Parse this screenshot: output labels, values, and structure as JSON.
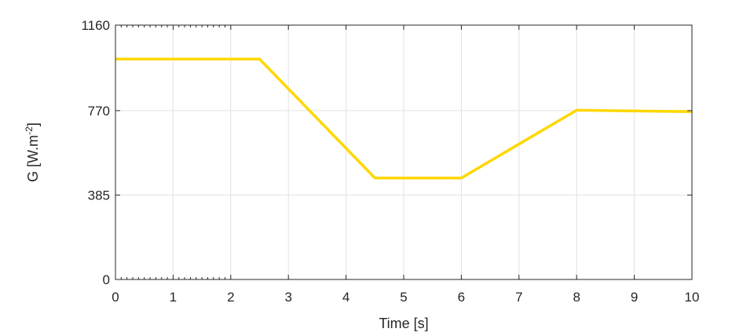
{
  "chart_data": {
    "type": "line",
    "title": "",
    "xlabel": "Time [s]",
    "ylabel": "G [W.m",
    "ylabel_superscript": "-2",
    "ylabel_suffix": "]",
    "xlim": [
      0,
      10
    ],
    "ylim": [
      0,
      1160
    ],
    "xticks": [
      0,
      1,
      2,
      3,
      4,
      5,
      6,
      7,
      8,
      9,
      10
    ],
    "xtick_labels": [
      "0",
      "1",
      "2",
      "3",
      "4",
      "5",
      "6",
      "7",
      "8",
      "9",
      "10"
    ],
    "yticks": [
      0,
      385,
      770,
      1160
    ],
    "ytick_labels": [
      "0",
      "385",
      "770",
      "1160"
    ],
    "grid": true,
    "series": [
      {
        "color": "#FFD700",
        "x": [
          0,
          2.5,
          4.5,
          6,
          8,
          10
        ],
        "y": [
          1005,
          1005,
          463,
          463,
          772,
          765
        ]
      }
    ]
  }
}
